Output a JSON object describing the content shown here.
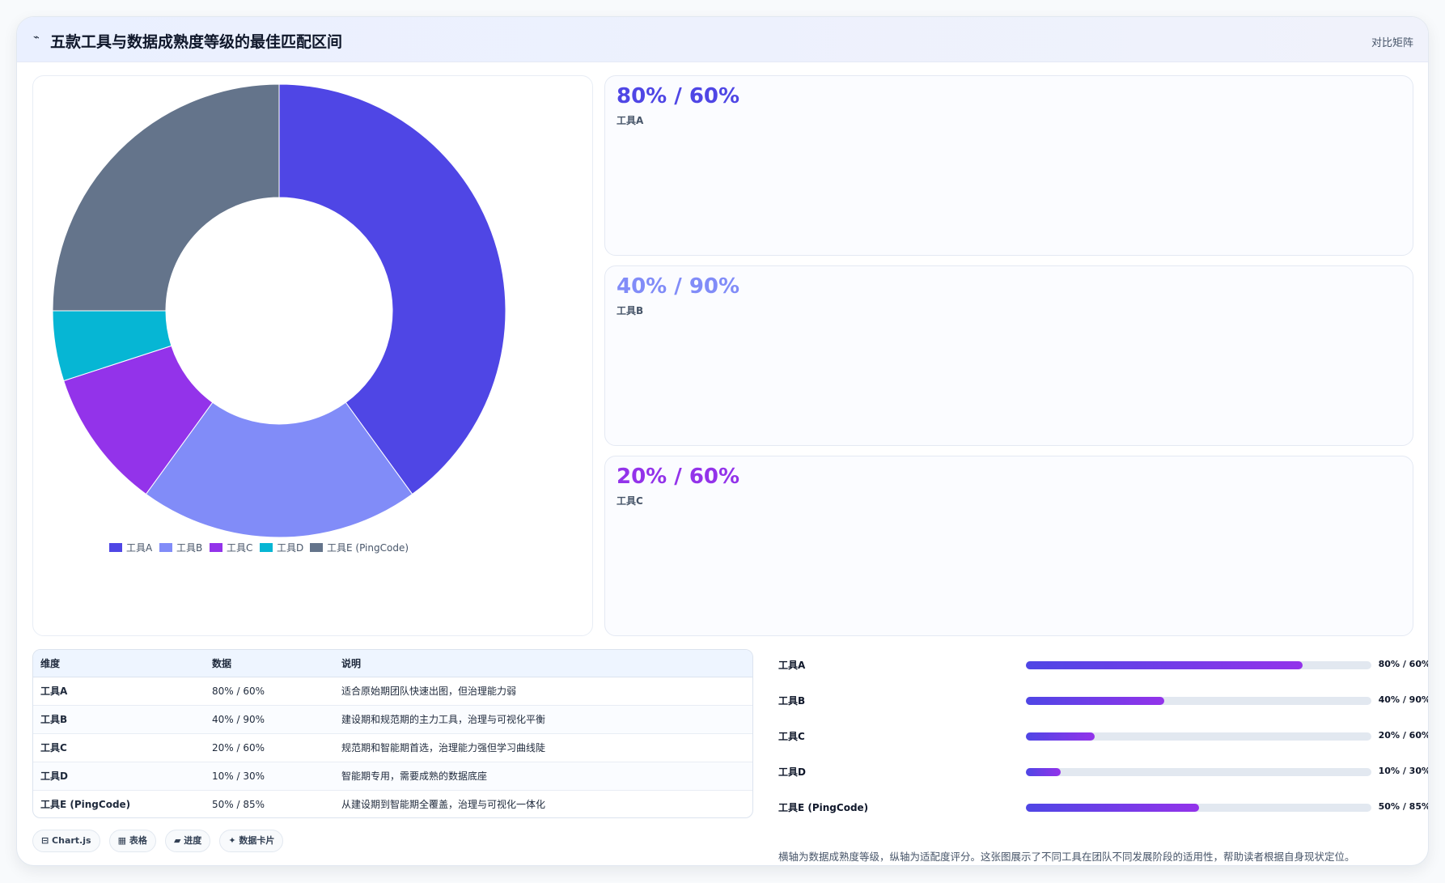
{
  "header": {
    "icon": "chart-line-icon",
    "title": "五款工具与数据成熟度等级的最佳匹配区间",
    "badge": "对比矩阵"
  },
  "chart_data": {
    "type": "pie",
    "title": "",
    "categories": [
      "工具A",
      "工具B",
      "工具C",
      "工具D",
      "工具E (PingCode)"
    ],
    "values": [
      80,
      40,
      20,
      10,
      50
    ],
    "colors": [
      "#4f46e5",
      "#818cf8",
      "#9333ea",
      "#06b6d4",
      "#64748b"
    ],
    "legend_position": "bottom"
  },
  "kpis": [
    {
      "value": "80% / 60%",
      "label": "工具A",
      "color": "#4f46e5"
    },
    {
      "value": "40% / 90%",
      "label": "工具B",
      "color": "#818cf8"
    },
    {
      "value": "20% / 60%",
      "label": "工具C",
      "color": "#9333ea"
    }
  ],
  "table": {
    "headers": [
      "维度",
      "数据",
      "说明"
    ],
    "rows": [
      [
        "工具A",
        "80% / 60%",
        "适合原始期团队快速出图，但治理能力弱"
      ],
      [
        "工具B",
        "40% / 90%",
        "建设期和规范期的主力工具，治理与可视化平衡"
      ],
      [
        "工具C",
        "20% / 60%",
        "规范期和智能期首选，治理能力强但学习曲线陡"
      ],
      [
        "工具D",
        "10% / 30%",
        "智能期专用，需要成熟的数据底座"
      ],
      [
        "工具E (PingCode)",
        "50% / 85%",
        "从建设期到智能期全覆盖，治理与可视化一体化"
      ]
    ]
  },
  "chips": [
    "⊟ Chart.js",
    "▦ 表格",
    "▰ 进度",
    "✦ 数据卡片"
  ],
  "progress": [
    {
      "name": "工具A",
      "value": "80% / 60%",
      "fill": 0.8
    },
    {
      "name": "工具B",
      "value": "40% / 90%",
      "fill": 0.4
    },
    {
      "name": "工具C",
      "value": "20% / 60%",
      "fill": 0.2
    },
    {
      "name": "工具D",
      "value": "10% / 30%",
      "fill": 0.1
    },
    {
      "name": "工具E (PingCode)",
      "value": "50% / 85%",
      "fill": 0.5
    }
  ],
  "footnote": "横轴为数据成熟度等级，纵轴为适配度评分。这张图展示了不同工具在团队不同发展阶段的适用性，帮助读者根据自身现状定位。"
}
